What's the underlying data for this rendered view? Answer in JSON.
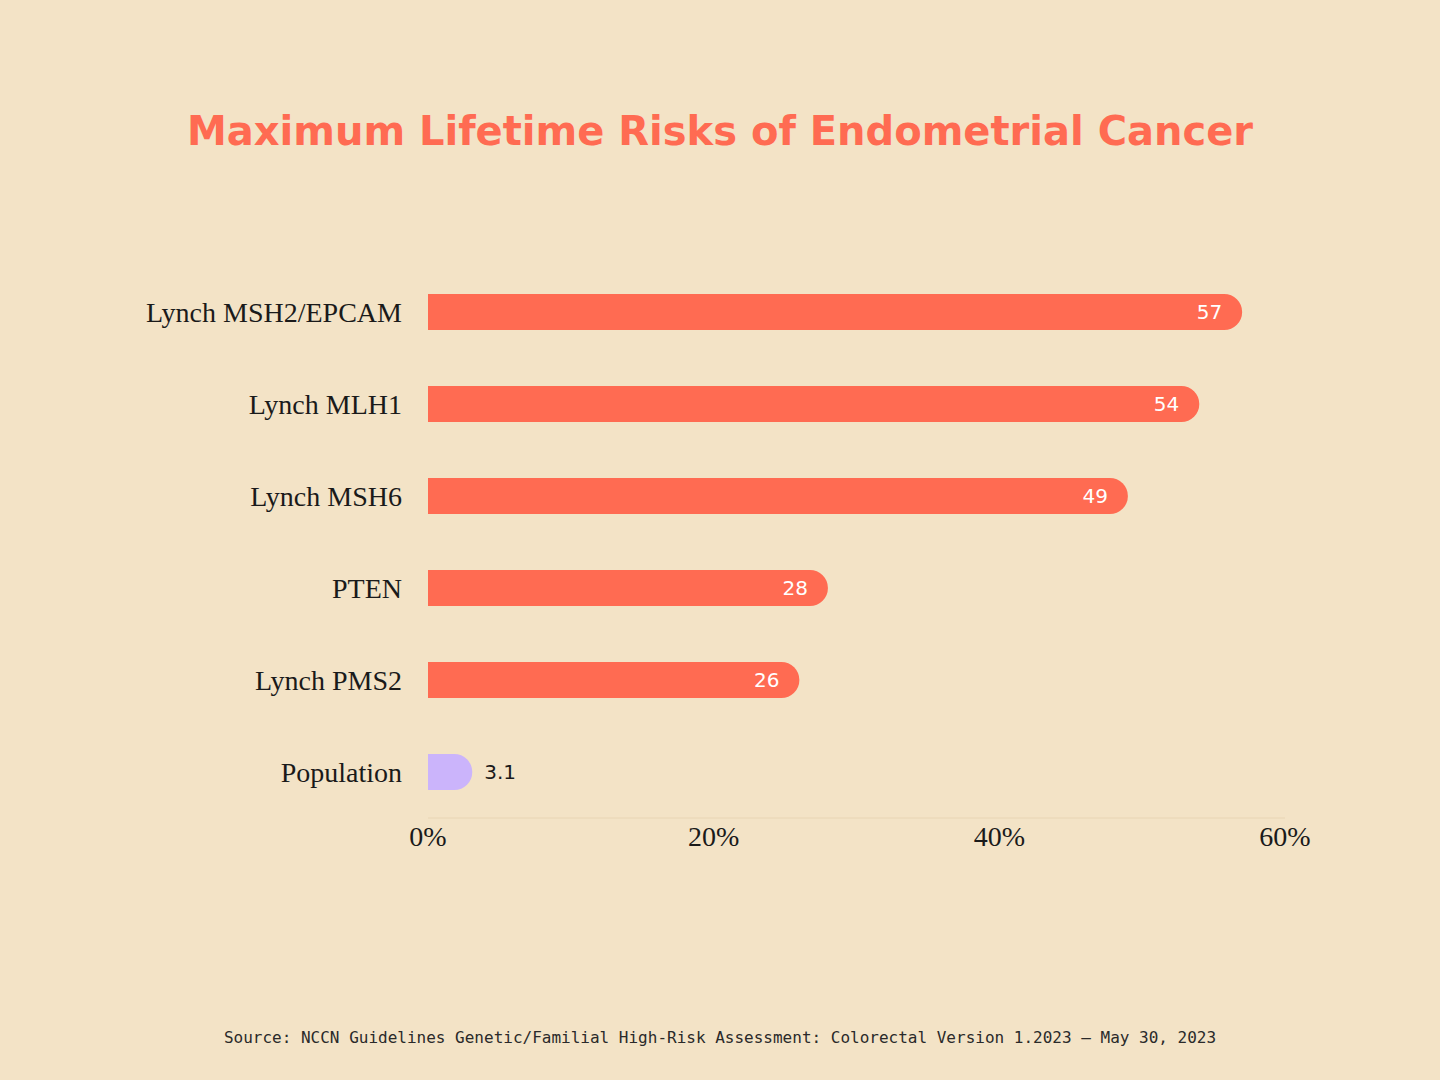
{
  "chart_data": {
    "type": "bar",
    "title": "Maximum Lifetime Risks of Endometrial Cancer",
    "source": "Source: NCCN Guidelines Genetic/Familial High-Risk Assessment: Colorectal Version 1.2023 — May 30, 2023",
    "orientation": "horizontal",
    "categories": [
      "Lynch MSH2/EPCAM",
      "Lynch MLH1",
      "Lynch MSH6",
      "PTEN",
      "Lynch PMS2",
      "Population"
    ],
    "values": [
      57,
      54,
      49,
      28,
      26,
      3.1
    ],
    "colors": [
      "#ff6b52",
      "#ff6b52",
      "#ff6b52",
      "#ff6b52",
      "#ff6b52",
      "#cbb4fb"
    ],
    "xlim": [
      0,
      60
    ],
    "xticks": [
      {
        "value": 0,
        "label": "0%"
      },
      {
        "value": 20,
        "label": "20%"
      },
      {
        "value": 40,
        "label": "40%"
      },
      {
        "value": 60,
        "label": "60%"
      }
    ],
    "data_labels": true,
    "grid": false
  }
}
